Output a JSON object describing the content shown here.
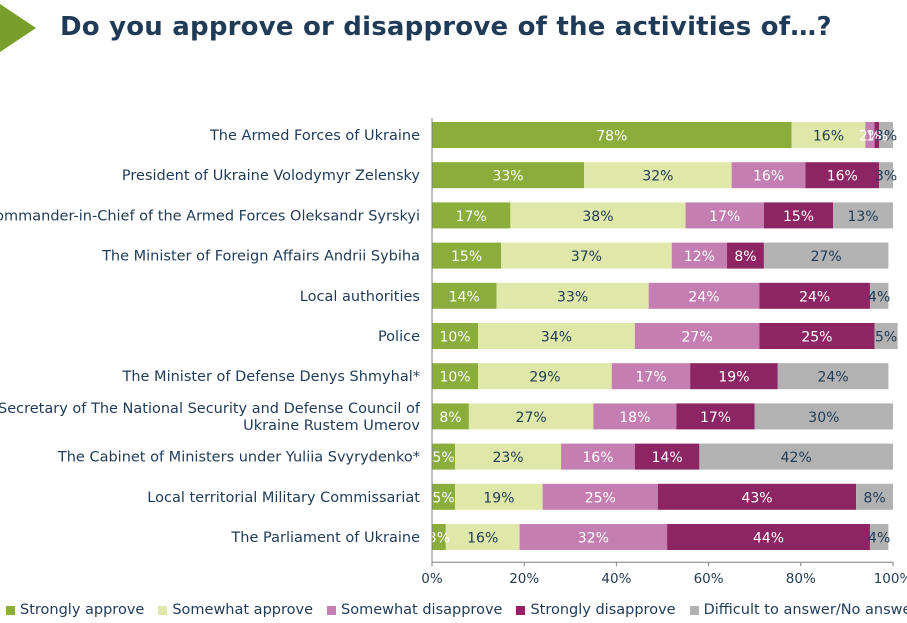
{
  "title": "Do you approve or disapprove of the activities of…?",
  "colors": {
    "title": "#1f3b57",
    "triangle": "#7a9e2c"
  },
  "chart_data": {
    "type": "bar",
    "orientation": "horizontal",
    "stacked": true,
    "title": "Do you approve or disapprove of the activities of…?",
    "xlabel": "",
    "ylabel": "",
    "xlim": [
      0,
      100
    ],
    "x_ticks": [
      "0%",
      "20%",
      "40%",
      "60%",
      "80%",
      "100%"
    ],
    "grid": false,
    "legend_position": "bottom",
    "categories": [
      [
        "The Armed Forces of Ukraine"
      ],
      [
        "President of Ukraine Volodymyr Zelensky"
      ],
      [
        "The Commander-in-Chief of the Armed Forces Oleksandr Syrskyi"
      ],
      [
        "The Minister of Foreign Affairs Andrii Sybiha"
      ],
      [
        "Local authorities"
      ],
      [
        "Police"
      ],
      [
        "The Minister of Defense Denys Shmyhal*"
      ],
      [
        "The Secretary of The National Security and Defense Council of",
        "Ukraine Rustem Umerov"
      ],
      [
        "The Cabinet of Ministers under Yuliia Svyrydenko*"
      ],
      [
        "Local territorial Military Commissariat"
      ],
      [
        "The Parliament of Ukraine"
      ]
    ],
    "series": [
      {
        "name": "Strongly approve",
        "color": "#8aad3b",
        "label_color": "#ffffff",
        "values": [
          78,
          33,
          17,
          15,
          14,
          10,
          10,
          8,
          5,
          5,
          3
        ]
      },
      {
        "name": "Somewhat approve",
        "color": "#dfe8a8",
        "label_color": "#1f3b57",
        "values": [
          16,
          32,
          38,
          37,
          33,
          34,
          29,
          27,
          23,
          19,
          16
        ]
      },
      {
        "name": "Somewhat disapprove",
        "color": "#c47eb1",
        "label_color": "#ffffff",
        "values": [
          2,
          16,
          17,
          12,
          24,
          27,
          17,
          18,
          16,
          25,
          32
        ]
      },
      {
        "name": "Strongly disapprove",
        "color": "#8d2464",
        "label_color": "#ffffff",
        "values": [
          1,
          16,
          15,
          8,
          24,
          25,
          19,
          17,
          14,
          43,
          44
        ]
      },
      {
        "name": "Difficult to answer/No answer",
        "color": "#b2b2b2",
        "label_color": "#1f3b57",
        "values": [
          3,
          3,
          13,
          27,
          4,
          5,
          24,
          30,
          42,
          8,
          4
        ]
      }
    ]
  }
}
